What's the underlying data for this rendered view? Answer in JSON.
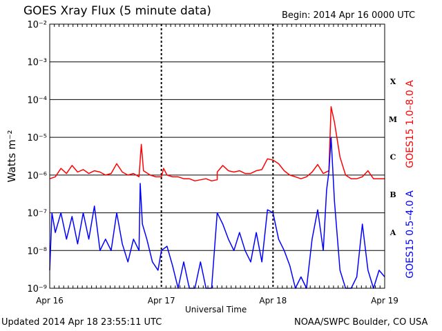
{
  "header": {
    "title": "GOES Xray Flux (5 minute data)",
    "begin": "Begin:  2014 Apr 16 0000 UTC"
  },
  "footer": {
    "updated": "Updated 2014 Apr 18 23:55:11 UTC",
    "credit": "NOAA/SWPC Boulder, CO USA"
  },
  "chart_data": {
    "type": "line",
    "title": "GOES Xray Flux (5 minute data)",
    "xlabel": "Universal Time",
    "ylabel": "Watts m⁻²",
    "y_scale": "log",
    "ylim": [
      1e-09,
      0.01
    ],
    "xlim_days": [
      0,
      3
    ],
    "x_ticks": [
      "Apr 16",
      "Apr 17",
      "Apr 18",
      "Apr 19"
    ],
    "y_ticks": [
      "10⁻⁹",
      "10⁻⁸",
      "10⁻⁷",
      "10⁻⁶",
      "10⁻⁵",
      "10⁻⁴",
      "10⁻³",
      "10⁻²"
    ],
    "flare_classes": [
      "A",
      "B",
      "C",
      "M",
      "X"
    ],
    "grid": true,
    "series": [
      {
        "name": "GOES15 1.0–8.0 A",
        "color": "#ff0000",
        "points": [
          [
            0.0,
            8e-07
          ],
          [
            0.05,
            9e-07
          ],
          [
            0.1,
            1.5e-06
          ],
          [
            0.15,
            1.1e-06
          ],
          [
            0.2,
            1.8e-06
          ],
          [
            0.25,
            1.2e-06
          ],
          [
            0.3,
            1.4e-06
          ],
          [
            0.35,
            1.1e-06
          ],
          [
            0.4,
            1.3e-06
          ],
          [
            0.45,
            1.2e-06
          ],
          [
            0.5,
            1e-06
          ],
          [
            0.55,
            1.1e-06
          ],
          [
            0.6,
            2e-06
          ],
          [
            0.65,
            1.2e-06
          ],
          [
            0.7,
            1e-06
          ],
          [
            0.75,
            1.1e-06
          ],
          [
            0.8,
            9e-07
          ],
          [
            0.82,
            6.5e-06
          ],
          [
            0.84,
            1.3e-06
          ],
          [
            0.9,
            1e-06
          ],
          [
            0.95,
            9e-07
          ],
          [
            1.0,
            9e-07
          ],
          [
            1.02,
            1.5e-06
          ],
          [
            1.05,
            1e-06
          ],
          [
            1.1,
            9e-07
          ],
          [
            1.15,
            9e-07
          ],
          [
            1.2,
            8e-07
          ],
          [
            1.25,
            8e-07
          ],
          [
            1.3,
            7e-07
          ],
          [
            1.35,
            7.5e-07
          ],
          [
            1.4,
            8e-07
          ],
          [
            1.45,
            7e-07
          ],
          [
            1.5,
            7.5e-07
          ],
          [
            1.5,
            1.2e-06
          ],
          [
            1.55,
            1.8e-06
          ],
          [
            1.6,
            1.3e-06
          ],
          [
            1.65,
            1.2e-06
          ],
          [
            1.7,
            1.3e-06
          ],
          [
            1.75,
            1.1e-06
          ],
          [
            1.8,
            1.1e-06
          ],
          [
            1.85,
            1.3e-06
          ],
          [
            1.9,
            1.4e-06
          ],
          [
            1.95,
            2.7e-06
          ],
          [
            2.0,
            2.5e-06
          ],
          [
            2.05,
            2e-06
          ],
          [
            2.1,
            1.3e-06
          ],
          [
            2.15,
            1e-06
          ],
          [
            2.2,
            9e-07
          ],
          [
            2.25,
            8e-07
          ],
          [
            2.3,
            9e-07
          ],
          [
            2.35,
            1.2e-06
          ],
          [
            2.4,
            1.9e-06
          ],
          [
            2.45,
            1.1e-06
          ],
          [
            2.5,
            1.3e-06
          ],
          [
            2.52,
            6.5e-05
          ],
          [
            2.55,
            2.5e-05
          ],
          [
            2.6,
            3e-06
          ],
          [
            2.65,
            1e-06
          ],
          [
            2.7,
            8e-07
          ],
          [
            2.75,
            8e-07
          ],
          [
            2.8,
            9e-07
          ],
          [
            2.85,
            1.3e-06
          ],
          [
            2.9,
            8e-07
          ],
          [
            2.95,
            8e-07
          ],
          [
            3.0,
            8e-07
          ]
        ]
      },
      {
        "name": "GOES15 0.5–4.0 A",
        "color": "#0000ff",
        "points": [
          [
            0.0,
            3e-09
          ],
          [
            0.02,
            1e-07
          ],
          [
            0.05,
            3e-08
          ],
          [
            0.1,
            1e-07
          ],
          [
            0.15,
            2e-08
          ],
          [
            0.2,
            8e-08
          ],
          [
            0.25,
            1.5e-08
          ],
          [
            0.3,
            1e-07
          ],
          [
            0.35,
            2e-08
          ],
          [
            0.4,
            1.5e-07
          ],
          [
            0.45,
            1e-08
          ],
          [
            0.5,
            2e-08
          ],
          [
            0.55,
            1e-08
          ],
          [
            0.6,
            1e-07
          ],
          [
            0.65,
            1.5e-08
          ],
          [
            0.7,
            5e-09
          ],
          [
            0.75,
            2e-08
          ],
          [
            0.8,
            1e-08
          ],
          [
            0.81,
            6e-07
          ],
          [
            0.83,
            5e-08
          ],
          [
            0.87,
            2e-08
          ],
          [
            0.92,
            5e-09
          ],
          [
            0.97,
            3e-09
          ],
          [
            1.0,
            1e-08
          ],
          [
            1.05,
            1.3e-08
          ],
          [
            1.1,
            4e-09
          ],
          [
            1.15,
            1e-09
          ],
          [
            1.2,
            5e-09
          ],
          [
            1.25,
            1e-09
          ],
          [
            1.3,
            1e-09
          ],
          [
            1.35,
            5e-09
          ],
          [
            1.4,
            1e-09
          ],
          [
            1.45,
            1e-09
          ],
          [
            1.5,
            1e-07
          ],
          [
            1.55,
            5e-08
          ],
          [
            1.6,
            2e-08
          ],
          [
            1.65,
            1e-08
          ],
          [
            1.7,
            3e-08
          ],
          [
            1.75,
            1e-08
          ],
          [
            1.8,
            5e-09
          ],
          [
            1.85,
            3e-08
          ],
          [
            1.9,
            5e-09
          ],
          [
            1.95,
            1.2e-07
          ],
          [
            2.0,
            1e-07
          ],
          [
            2.05,
            2e-08
          ],
          [
            2.1,
            1e-08
          ],
          [
            2.15,
            4e-09
          ],
          [
            2.2,
            1e-09
          ],
          [
            2.25,
            2e-09
          ],
          [
            2.3,
            1e-09
          ],
          [
            2.35,
            2e-08
          ],
          [
            2.4,
            1.2e-07
          ],
          [
            2.45,
            1e-08
          ],
          [
            2.48,
            4e-07
          ],
          [
            2.5,
            1.2e-06
          ],
          [
            2.52,
            1e-05
          ],
          [
            2.55,
            2e-07
          ],
          [
            2.6,
            3e-09
          ],
          [
            2.65,
            1e-09
          ],
          [
            2.7,
            1e-09
          ],
          [
            2.75,
            2e-09
          ],
          [
            2.8,
            5e-08
          ],
          [
            2.85,
            3e-09
          ],
          [
            2.9,
            1e-09
          ],
          [
            2.95,
            3e-09
          ],
          [
            3.0,
            2e-09
          ]
        ]
      }
    ]
  }
}
